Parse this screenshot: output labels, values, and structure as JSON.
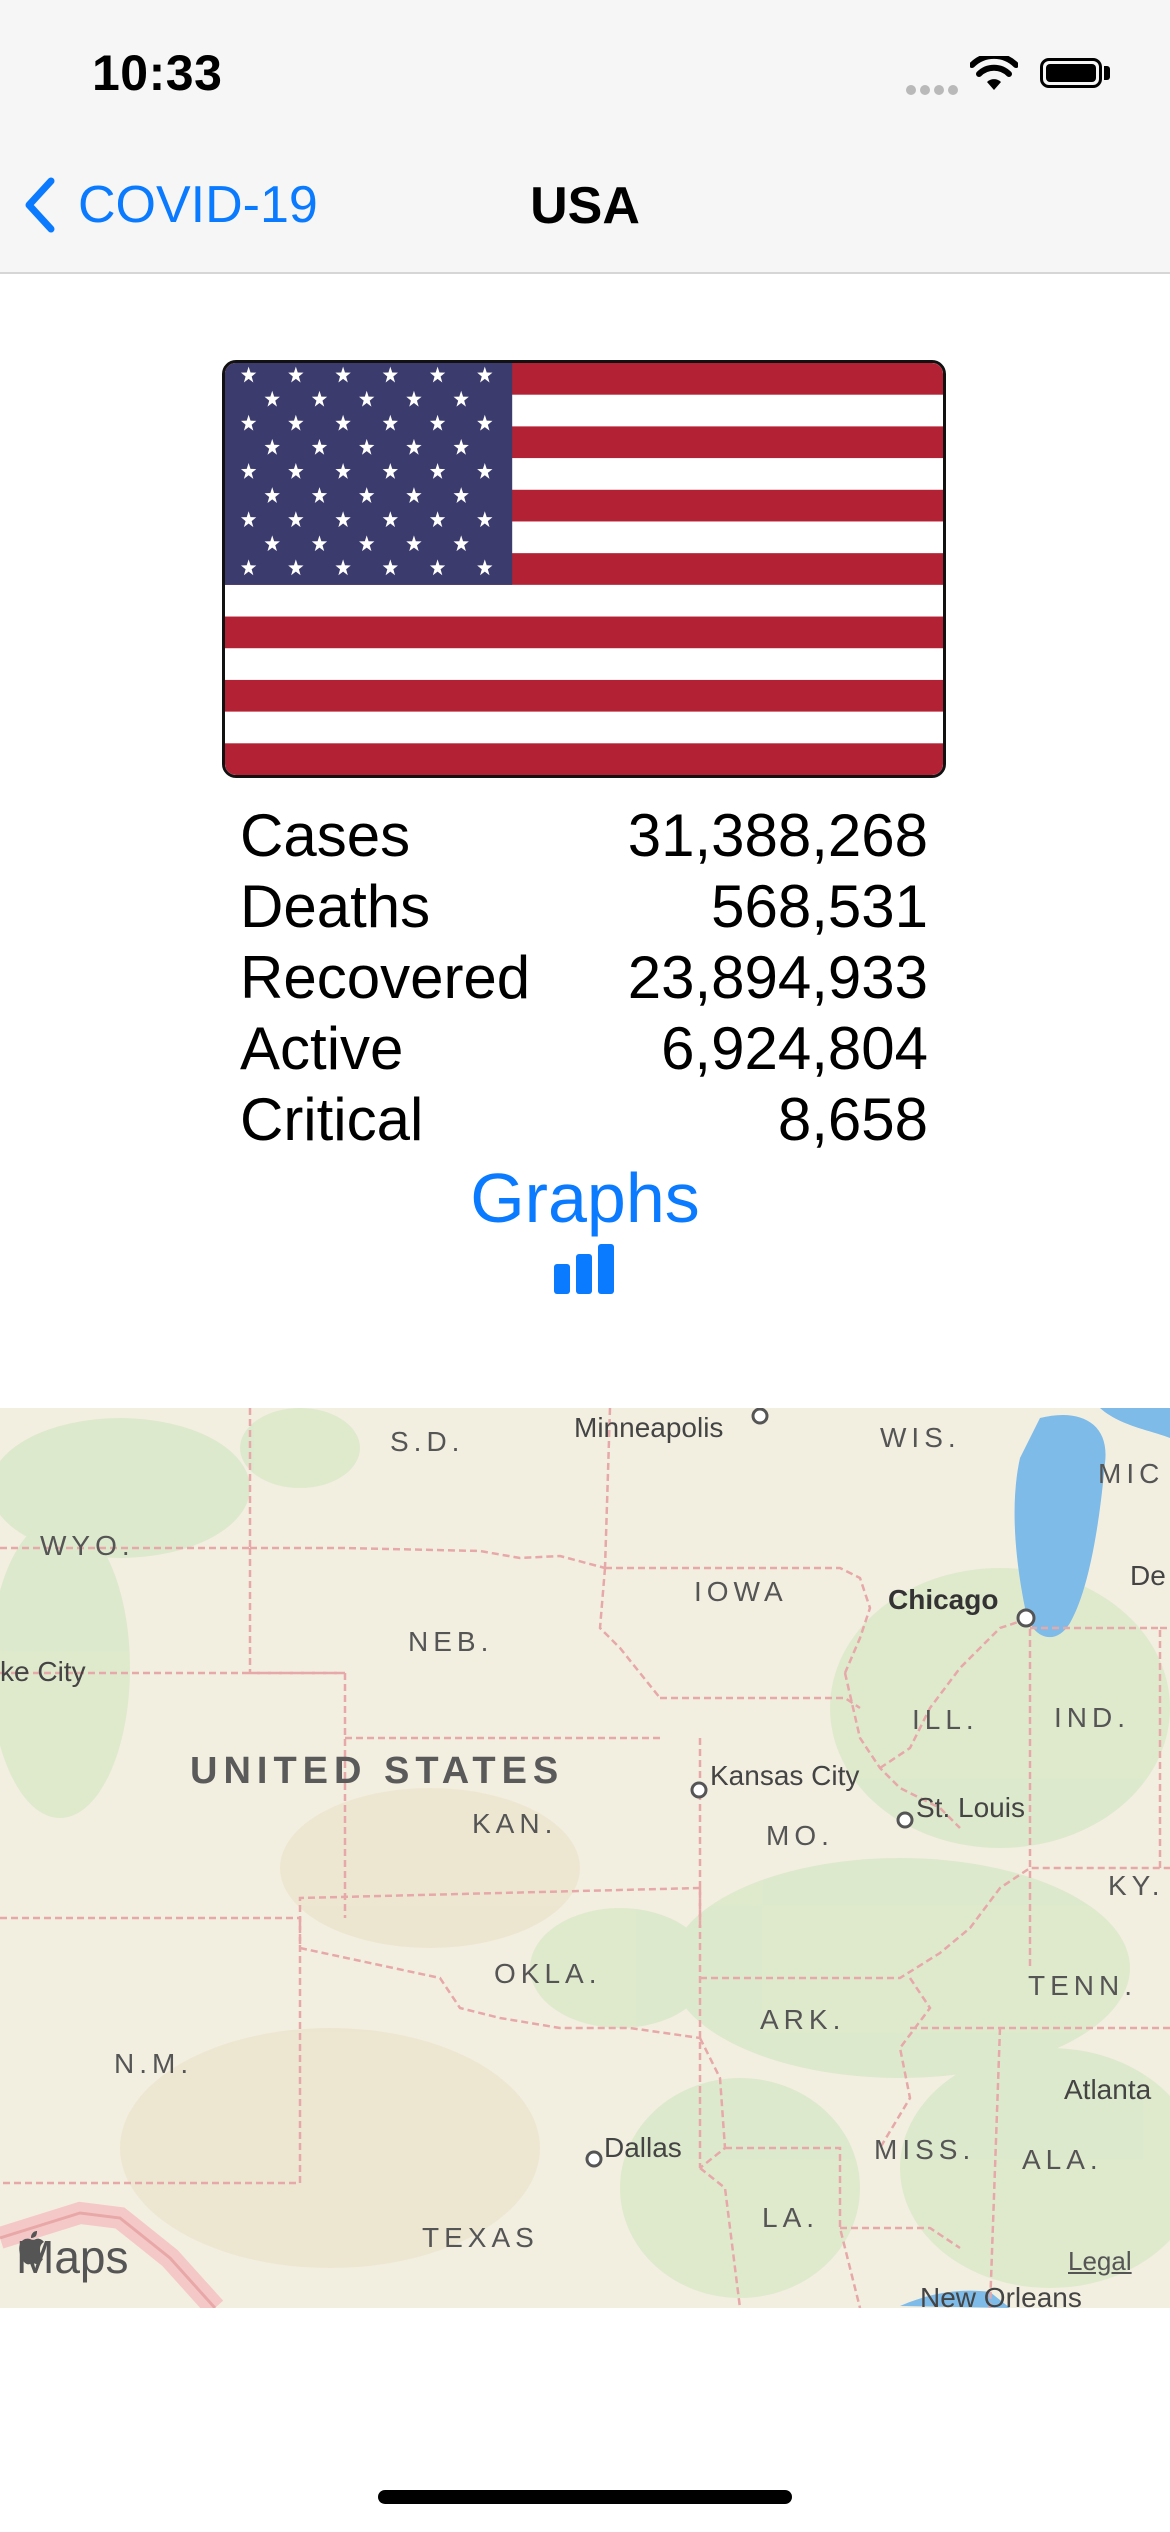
{
  "status_bar": {
    "time": "10:33",
    "icons": [
      "cellular-signal-icon",
      "wifi-icon",
      "battery-icon"
    ]
  },
  "nav": {
    "back_label": "COVID-19",
    "title": "USA",
    "icons": [
      "chevron-left-icon"
    ]
  },
  "country": {
    "flag_icon": "us-flag-icon",
    "stats": [
      {
        "label": "Cases",
        "value": "31,388,268"
      },
      {
        "label": "Deaths",
        "value": "568,531"
      },
      {
        "label": "Recovered",
        "value": "23,894,933"
      },
      {
        "label": "Active",
        "value": "6,924,804"
      },
      {
        "label": "Critical",
        "value": "8,658"
      }
    ],
    "graphs_label": "Graphs",
    "graphs_icon": "bar-chart-icon"
  },
  "map": {
    "country_label": "UNITED STATES",
    "state_labels": [
      "S.D.",
      "WIS.",
      "MIC",
      "WYO.",
      "IOWA",
      "NEB.",
      "ILL.",
      "IND.",
      "KAN.",
      "MO.",
      "KY.",
      "OKLA.",
      "TENN.",
      "ARK.",
      "N.M.",
      "MISS.",
      "ALA.",
      "LA.",
      "TEXAS"
    ],
    "city_labels": [
      "Minneapolis",
      "Chicago",
      "De",
      "ke City",
      "Kansas City",
      "St. Louis",
      "Atlanta",
      "Dallas",
      "New Orleans"
    ],
    "attribution": "Maps",
    "legal_label": "Legal",
    "colors": {
      "land": "#f2efe1",
      "park": "#d9e8c8",
      "water": "#7ebbe8",
      "border": "#e6a8a8"
    }
  },
  "colors": {
    "accent": "#0a7aff",
    "flag_red": "#b22234",
    "flag_blue": "#3c3b6e"
  }
}
